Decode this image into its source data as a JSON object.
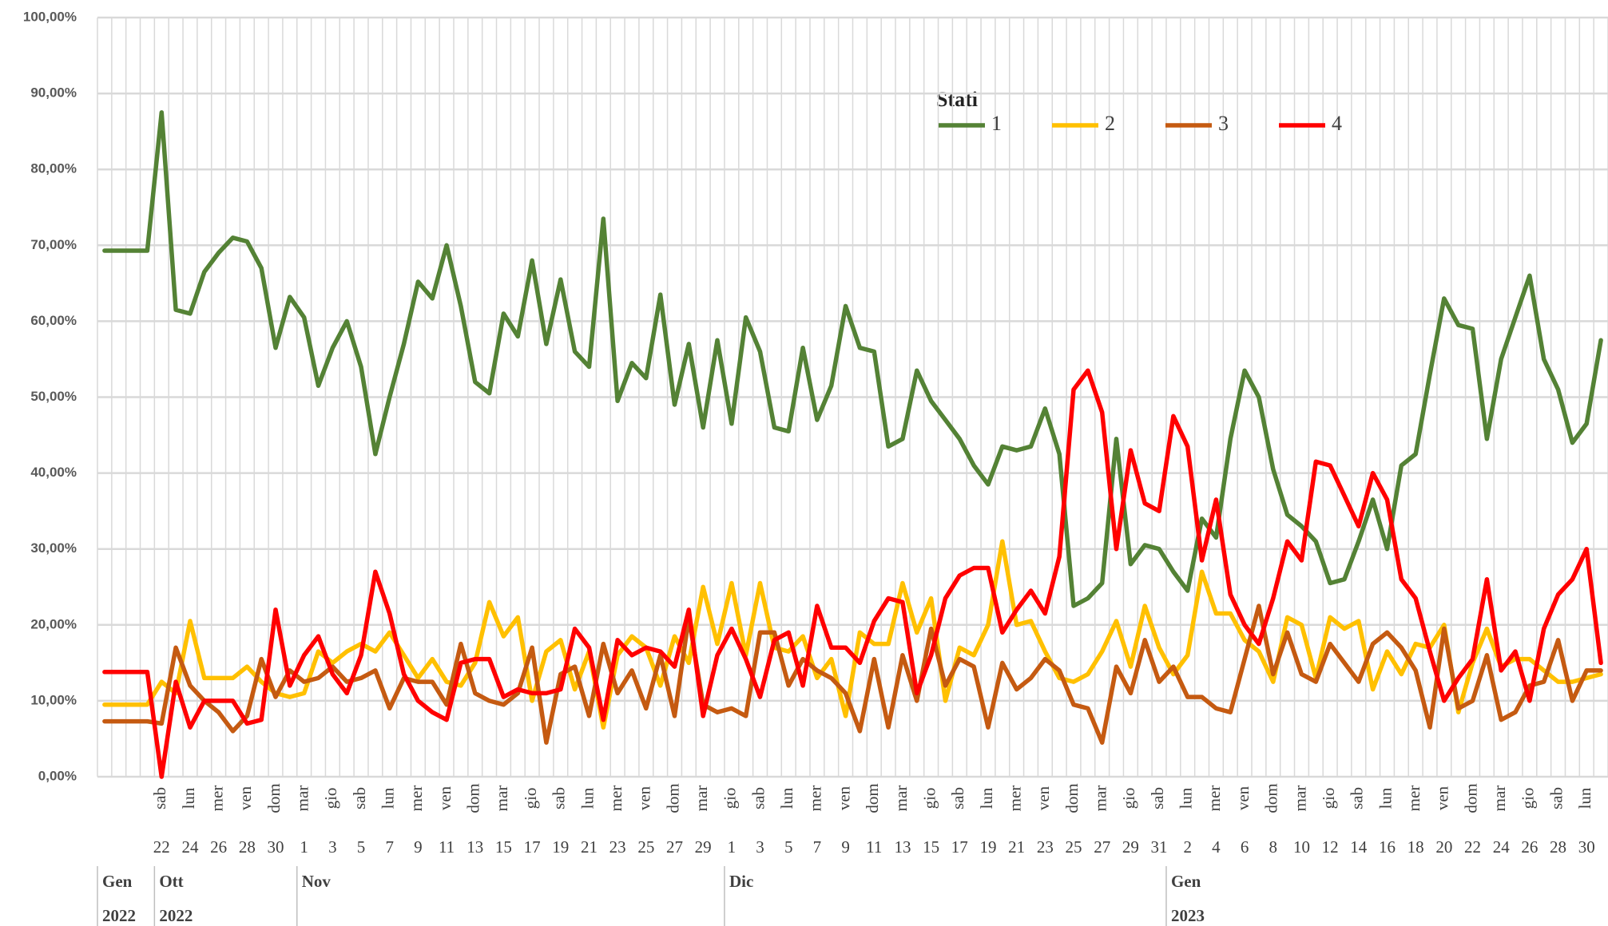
{
  "chart_data": {
    "type": "line",
    "legend_title": "Stati",
    "ylim": [
      0,
      100
    ],
    "yticks": [
      {
        "value": 0,
        "label": "0,00%"
      },
      {
        "value": 10,
        "label": "10,00%"
      },
      {
        "value": 20,
        "label": "20,00%"
      },
      {
        "value": 30,
        "label": "30,00%"
      },
      {
        "value": 40,
        "label": "40,00%"
      },
      {
        "value": 50,
        "label": "50,00%"
      },
      {
        "value": 60,
        "label": "60,00%"
      },
      {
        "value": 70,
        "label": "70,00%"
      },
      {
        "value": 80,
        "label": "80,00%"
      },
      {
        "value": 90,
        "label": "90,00%"
      },
      {
        "value": 100,
        "label": "100,00%"
      }
    ],
    "grid": true,
    "groups": [
      {
        "month": "Gen",
        "year": "2022",
        "days": [
          null,
          null,
          null,
          null
        ],
        "weekdays": [
          null,
          null,
          null,
          null
        ]
      },
      {
        "month": "Ott",
        "year": "2022",
        "days": [
          22,
          null,
          24,
          null,
          26,
          null,
          28,
          null,
          30,
          null
        ],
        "weekdays": [
          "sab",
          null,
          "lun",
          null,
          "mer",
          null,
          "ven",
          null,
          "dom",
          null
        ]
      },
      {
        "month": "Nov",
        "days": [
          1,
          null,
          3,
          null,
          5,
          null,
          7,
          null,
          9,
          null,
          11,
          null,
          13,
          null,
          15,
          null,
          17,
          null,
          19,
          null,
          21,
          null,
          23,
          null,
          25,
          null,
          27,
          null,
          29,
          null
        ],
        "weekdays": [
          "mar",
          null,
          "gio",
          null,
          "sab",
          null,
          "lun",
          null,
          "mer",
          null,
          "ven",
          null,
          "dom",
          null,
          "mar",
          null,
          "gio",
          null,
          "sab",
          null,
          "lun",
          null,
          "mer",
          null,
          "ven",
          null,
          "dom",
          null,
          "mar",
          null
        ]
      },
      {
        "month": "Dic",
        "days": [
          1,
          null,
          3,
          null,
          5,
          null,
          7,
          null,
          9,
          null,
          11,
          null,
          13,
          null,
          15,
          null,
          17,
          null,
          19,
          null,
          21,
          null,
          23,
          null,
          25,
          null,
          27,
          null,
          29,
          null,
          31
        ],
        "weekdays": [
          "gio",
          null,
          "sab",
          null,
          "lun",
          null,
          "mer",
          null,
          "ven",
          null,
          "dom",
          null,
          "mar",
          null,
          "gio",
          null,
          "sab",
          null,
          "lun",
          null,
          "mer",
          null,
          "ven",
          null,
          "dom",
          null,
          "mar",
          null,
          "gio",
          null,
          "sab"
        ]
      },
      {
        "month": "Gen",
        "year": "2023",
        "days": [
          null,
          2,
          null,
          4,
          null,
          6,
          null,
          8,
          null,
          10,
          null,
          12,
          null,
          14,
          null,
          16,
          null,
          18,
          null,
          20,
          null,
          22,
          null,
          24,
          null,
          26,
          null,
          28,
          null,
          30,
          null
        ],
        "weekdays": [
          null,
          "lun",
          null,
          "mer",
          null,
          "ven",
          null,
          "dom",
          null,
          "mar",
          null,
          "gio",
          null,
          "sab",
          null,
          "lun",
          null,
          "mer",
          null,
          "ven",
          null,
          "dom",
          null,
          "mar",
          null,
          "gio",
          null,
          "sab",
          null,
          "lun",
          null
        ]
      }
    ],
    "series": [
      {
        "name": "1",
        "color": "#548235",
        "values": [
          69.3,
          69.3,
          69.3,
          69.3,
          87.5,
          61.5,
          61,
          66.5,
          69,
          71,
          70.5,
          67,
          56.5,
          63.2,
          60.5,
          51.5,
          56.5,
          60,
          54,
          42.5,
          50,
          57,
          65.2,
          63,
          70,
          62,
          52,
          50.5,
          61,
          58,
          68,
          57,
          65.5,
          56,
          54,
          73.5,
          49.5,
          54.5,
          52.5,
          63.5,
          49,
          57,
          46,
          57.5,
          46.5,
          60.5,
          56,
          46,
          45.5,
          56.5,
          47,
          51.5,
          62,
          56.5,
          56,
          43.5,
          44.5,
          53.5,
          49.5,
          47,
          44.5,
          41,
          38.5,
          43.5,
          43,
          43.5,
          48.5,
          42.5,
          22.5,
          23.5,
          25.5,
          44.5,
          28,
          30.5,
          30,
          27,
          24.5,
          34,
          31.5,
          44.5,
          53.5,
          50,
          40.5,
          34.5,
          33,
          31,
          25.5,
          26,
          31,
          36.5,
          30,
          41,
          42.5,
          53,
          63,
          59.5,
          59,
          44.5,
          55,
          60.5,
          66,
          55,
          51,
          44,
          46.5,
          57.5
        ]
      },
      {
        "name": "2",
        "color": "#ffc000",
        "values": [
          9.5,
          9.5,
          9.5,
          9.5,
          12.5,
          11,
          20.5,
          13,
          13,
          13,
          14.5,
          12.5,
          11,
          10.5,
          11,
          16.5,
          15,
          16.5,
          17.5,
          16.5,
          19,
          16,
          13,
          15.5,
          12.5,
          12,
          15,
          23,
          18.5,
          21,
          10,
          16.5,
          18,
          11.5,
          16.5,
          6.5,
          16,
          18.5,
          17,
          12,
          18.5,
          15,
          25,
          17.5,
          25.5,
          16,
          25.5,
          17,
          16.5,
          18.5,
          13,
          15.5,
          8,
          19,
          17.5,
          17.5,
          25.5,
          19,
          23.5,
          10,
          17,
          16,
          20,
          31,
          20,
          20.5,
          16.5,
          13,
          12.5,
          13.5,
          16.5,
          20.5,
          14.5,
          22.5,
          17,
          13.5,
          16,
          27,
          21.5,
          21.5,
          18,
          16.5,
          12.5,
          21,
          20,
          13,
          21,
          19.5,
          20.5,
          11.5,
          16.5,
          13.5,
          17.5,
          17,
          20,
          8.5,
          15,
          19.5,
          14.5,
          15.5,
          15.5,
          14,
          12.5,
          12.5,
          13,
          13.5
        ]
      },
      {
        "name": "3",
        "color": "#c55a11",
        "values": [
          7.3,
          7.3,
          7.3,
          7.3,
          7,
          17,
          12,
          10,
          8.5,
          6,
          8,
          15.5,
          10.5,
          14,
          12.5,
          13,
          14.5,
          12.5,
          13,
          14,
          9,
          13,
          12.5,
          12.5,
          9.5,
          17.5,
          11,
          10,
          9.5,
          11,
          17,
          4.5,
          13.5,
          14.5,
          8,
          17.5,
          11,
          14,
          9,
          16,
          8,
          21,
          9.5,
          8.5,
          9,
          8,
          19,
          19,
          12,
          15.5,
          14,
          13,
          11,
          6,
          15.5,
          6.5,
          16,
          10,
          19.5,
          12,
          15.5,
          14.5,
          6.5,
          15,
          11.5,
          13,
          15.5,
          14,
          9.5,
          9,
          4.5,
          14.5,
          11,
          18,
          12.5,
          14.5,
          10.5,
          10.5,
          9,
          8.5,
          15.5,
          22.5,
          13.5,
          19,
          13.5,
          12.5,
          17.5,
          15,
          12.5,
          17.5,
          19,
          17,
          14,
          6.5,
          19.5,
          9,
          10,
          16,
          7.5,
          8.5,
          12,
          12.5,
          18,
          10,
          14,
          14
        ]
      },
      {
        "name": "4",
        "color": "#ff0000",
        "values": [
          13.8,
          13.8,
          13.8,
          13.8,
          0,
          12.5,
          6.5,
          10,
          10,
          10,
          7,
          7.5,
          22,
          12,
          16,
          18.5,
          13.5,
          11,
          16,
          27,
          21.5,
          13.5,
          10,
          8.5,
          7.5,
          15,
          15.5,
          15.5,
          10.5,
          11.5,
          11,
          11,
          11.5,
          19.5,
          17,
          7.5,
          18,
          16,
          17,
          16.5,
          14.5,
          22,
          8,
          16,
          19.5,
          15.5,
          10.5,
          18,
          19,
          12,
          22.5,
          17,
          17,
          15,
          20.5,
          23.5,
          23,
          11,
          16,
          23.5,
          26.5,
          27.5,
          27.5,
          19,
          22,
          24.5,
          21.5,
          29,
          51,
          53.5,
          48,
          30,
          43,
          36,
          35,
          47.5,
          43.5,
          28.5,
          36.5,
          24,
          20,
          17.5,
          23.5,
          31,
          28.5,
          41.5,
          41,
          37,
          33,
          40,
          36.5,
          26,
          23.5,
          16.5,
          10,
          13,
          15.5,
          26,
          14,
          16.5,
          10,
          19.5,
          24,
          26,
          30,
          15
        ]
      }
    ]
  }
}
